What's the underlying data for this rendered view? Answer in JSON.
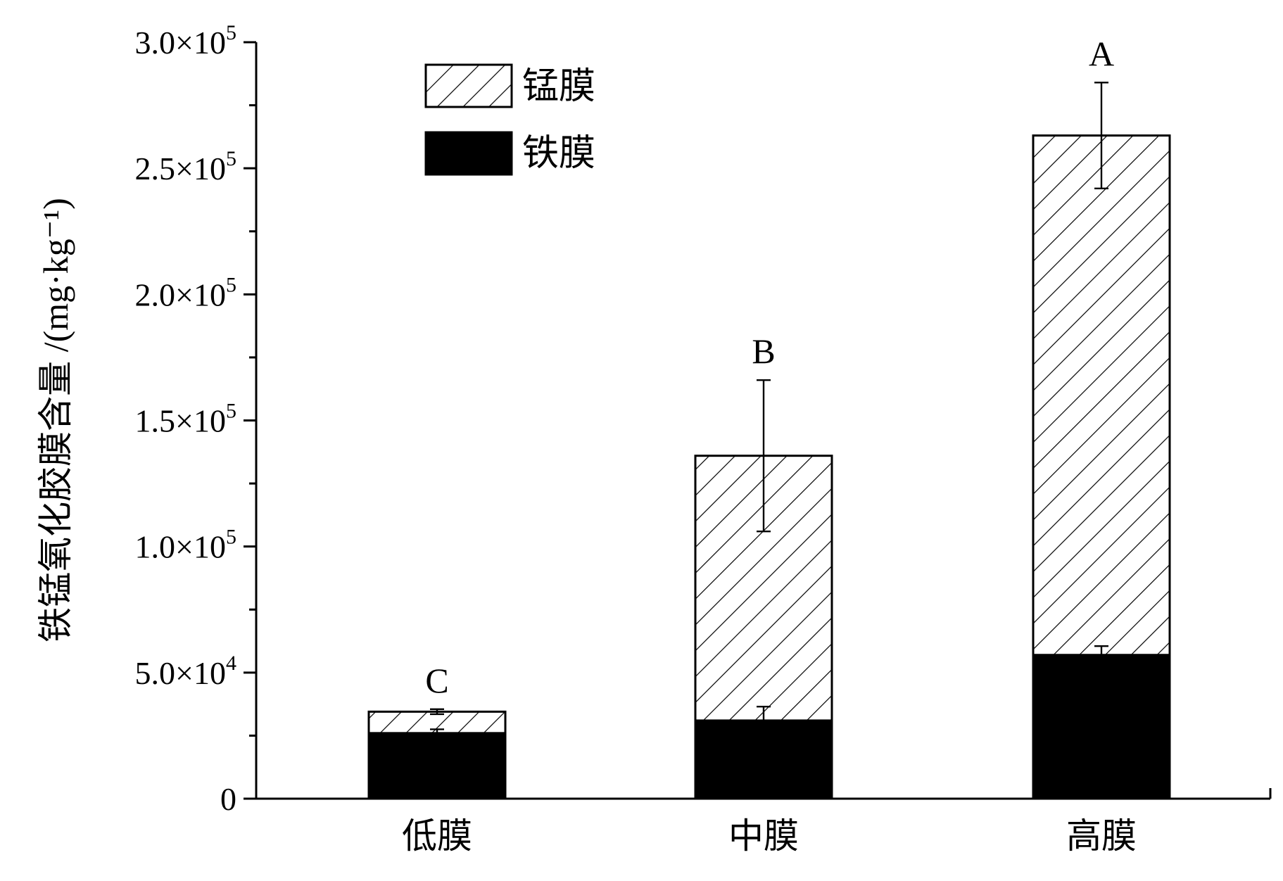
{
  "chart_data": {
    "type": "bar",
    "stacked": true,
    "categories": [
      "低膜",
      "中膜",
      "高膜"
    ],
    "series": [
      {
        "name": "铁膜",
        "values": [
          26000,
          31000,
          57000
        ],
        "errors": [
          1500,
          5500,
          3500
        ],
        "fill": "solid-black"
      },
      {
        "name": "锰膜",
        "values": [
          8500,
          105000,
          206000
        ],
        "errors": [
          1000,
          30000,
          21000
        ],
        "fill": "diagonal-hatch"
      }
    ],
    "totals": [
      34500,
      136000,
      263000
    ],
    "significance": [
      "C",
      "B",
      "A"
    ],
    "ylabel": "铁锰氧化胶膜含量 /(mg·kg⁻¹)",
    "xlabel": "",
    "ylim": [
      0,
      300000
    ],
    "yticks": [
      {
        "value": 0,
        "mant": "0",
        "exp": ""
      },
      {
        "value": 50000,
        "mant": "5.0×10",
        "exp": "4"
      },
      {
        "value": 100000,
        "mant": "1.0×10",
        "exp": "5"
      },
      {
        "value": 150000,
        "mant": "1.5×10",
        "exp": "5"
      },
      {
        "value": 200000,
        "mant": "2.0×10",
        "exp": "5"
      },
      {
        "value": 250000,
        "mant": "2.5×10",
        "exp": "5"
      },
      {
        "value": 300000,
        "mant": "3.0×10",
        "exp": "5"
      }
    ],
    "legend_position": "top-left",
    "grid": false
  }
}
